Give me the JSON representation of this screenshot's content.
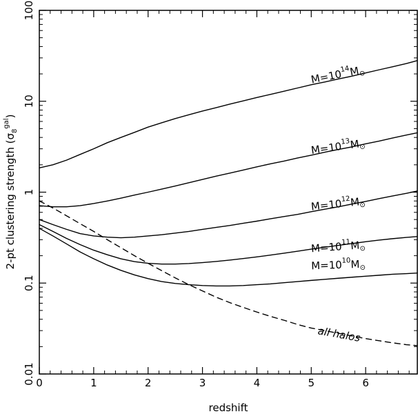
{
  "chart_data": {
    "type": "line",
    "title": "",
    "xlabel": "redshift",
    "ylabel": "2-pt clustering strength (σ8gal)",
    "ylabel_parts": {
      "main": "2-pt clustering strength (σ",
      "sub": "8",
      "sup": "gal",
      "close": ")"
    },
    "xlim": [
      0,
      6.95
    ],
    "ylim": [
      0.01,
      100
    ],
    "yscale": "log",
    "grid": false,
    "x_ticks": [
      0,
      1,
      2,
      3,
      4,
      5,
      6
    ],
    "x_tick_labels": [
      "0",
      "1",
      "2",
      "3",
      "4",
      "5",
      "6"
    ],
    "y_ticks": [
      0.01,
      0.1,
      1,
      10,
      100
    ],
    "y_tick_labels": [
      "0.01",
      "0.1",
      "1",
      "10",
      "100"
    ],
    "series": [
      {
        "label_parts": {
          "pre": "M=10",
          "exp": "14",
          "post": "M",
          "unit": "⊙"
        },
        "style": "solid",
        "label_at": [
          5.5,
          18
        ],
        "label_angle": -11,
        "x": [
          0,
          0.25,
          0.5,
          0.75,
          1,
          1.25,
          1.5,
          1.75,
          2,
          2.25,
          2.5,
          2.75,
          3,
          3.25,
          3.5,
          3.75,
          4,
          4.25,
          4.5,
          4.75,
          5,
          5.25,
          5.5,
          5.75,
          6,
          6.25,
          6.5,
          6.75,
          6.95
        ],
        "y": [
          1.85,
          2.0,
          2.25,
          2.6,
          3.0,
          3.5,
          4.0,
          4.55,
          5.2,
          5.8,
          6.45,
          7.1,
          7.8,
          8.5,
          9.3,
          10.1,
          11.0,
          11.9,
          12.9,
          14.0,
          15.2,
          16.3,
          17.6,
          18.9,
          20.5,
          22.2,
          24.0,
          26.0,
          28.0
        ]
      },
      {
        "label_parts": {
          "pre": "M=10",
          "exp": "13",
          "post": "M",
          "unit": "⊙"
        },
        "style": "solid",
        "label_at": [
          5.5,
          2.9
        ],
        "label_angle": -8,
        "x": [
          0,
          0.25,
          0.5,
          0.75,
          1,
          1.25,
          1.5,
          1.75,
          2,
          2.25,
          2.5,
          2.75,
          3,
          3.25,
          3.5,
          3.75,
          4,
          4.25,
          4.5,
          4.75,
          5,
          5.25,
          5.5,
          5.75,
          6,
          6.25,
          6.5,
          6.75,
          6.95
        ],
        "y": [
          0.71,
          0.69,
          0.69,
          0.71,
          0.75,
          0.8,
          0.86,
          0.93,
          1.0,
          1.08,
          1.17,
          1.27,
          1.38,
          1.5,
          1.62,
          1.75,
          1.9,
          2.05,
          2.2,
          2.38,
          2.55,
          2.75,
          2.95,
          3.15,
          3.4,
          3.65,
          3.95,
          4.25,
          4.5
        ]
      },
      {
        "label_parts": {
          "pre": "M=10",
          "exp": "12",
          "post": "M",
          "unit": "⊙"
        },
        "style": "solid",
        "label_at": [
          5.5,
          0.68
        ],
        "label_angle": -6,
        "x": [
          0,
          0.25,
          0.5,
          0.75,
          1,
          1.25,
          1.5,
          1.75,
          2,
          2.25,
          2.5,
          2.75,
          3,
          3.25,
          3.5,
          3.75,
          4,
          4.25,
          4.5,
          4.75,
          5,
          5.25,
          5.5,
          5.75,
          6,
          6.25,
          6.5,
          6.75,
          6.95
        ],
        "y": [
          0.5,
          0.44,
          0.39,
          0.35,
          0.33,
          0.32,
          0.315,
          0.32,
          0.33,
          0.34,
          0.355,
          0.37,
          0.39,
          0.41,
          0.43,
          0.455,
          0.48,
          0.51,
          0.54,
          0.57,
          0.61,
          0.65,
          0.69,
          0.74,
          0.79,
          0.85,
          0.91,
          0.97,
          1.03
        ]
      },
      {
        "label_parts": {
          "pre": "M=10",
          "exp": "11",
          "post": "M",
          "unit": "⊙"
        },
        "style": "solid",
        "label_at": [
          5.5,
          0.23
        ],
        "label_angle": -4,
        "x": [
          0,
          0.25,
          0.5,
          0.75,
          1,
          1.25,
          1.5,
          1.75,
          2,
          2.25,
          2.5,
          2.75,
          3,
          3.25,
          3.5,
          3.75,
          4,
          4.25,
          4.5,
          4.75,
          5,
          5.25,
          5.5,
          5.75,
          6,
          6.25,
          6.5,
          6.75,
          6.95
        ],
        "y": [
          0.44,
          0.37,
          0.31,
          0.265,
          0.23,
          0.205,
          0.185,
          0.172,
          0.165,
          0.162,
          0.162,
          0.164,
          0.168,
          0.173,
          0.179,
          0.186,
          0.194,
          0.203,
          0.213,
          0.224,
          0.236,
          0.248,
          0.26,
          0.272,
          0.285,
          0.297,
          0.308,
          0.318,
          0.325
        ]
      },
      {
        "label_parts": {
          "pre": "M=10",
          "exp": "10",
          "post": "M",
          "unit": "⊙"
        },
        "style": "solid",
        "label_at": [
          5.5,
          0.145
        ],
        "label_angle": -2,
        "x": [
          0,
          0.25,
          0.5,
          0.75,
          1,
          1.25,
          1.5,
          1.75,
          2,
          2.25,
          2.5,
          2.75,
          3,
          3.25,
          3.5,
          3.75,
          4,
          4.25,
          4.5,
          4.75,
          5,
          5.25,
          5.5,
          5.75,
          6,
          6.25,
          6.5,
          6.75,
          6.95
        ],
        "y": [
          0.4,
          0.33,
          0.27,
          0.22,
          0.185,
          0.158,
          0.138,
          0.123,
          0.112,
          0.104,
          0.099,
          0.096,
          0.094,
          0.093,
          0.093,
          0.094,
          0.096,
          0.098,
          0.101,
          0.104,
          0.107,
          0.11,
          0.113,
          0.116,
          0.119,
          0.122,
          0.125,
          0.127,
          0.129
        ]
      },
      {
        "label_parts": {
          "pre": "all halos",
          "exp": "",
          "post": "",
          "unit": ""
        },
        "style": "dashed",
        "label_at": [
          5.5,
          0.025
        ],
        "label_angle": 10,
        "x": [
          0,
          0.25,
          0.5,
          0.75,
          1,
          1.25,
          1.5,
          1.75,
          2,
          2.25,
          2.5,
          2.75,
          3,
          3.25,
          3.5,
          3.75,
          4,
          4.25,
          4.5,
          4.75,
          5,
          5.25,
          5.5,
          5.75,
          6,
          6.25,
          6.5,
          6.75,
          6.95
        ],
        "y": [
          0.8,
          0.67,
          0.55,
          0.45,
          0.37,
          0.3,
          0.245,
          0.2,
          0.165,
          0.137,
          0.114,
          0.096,
          0.082,
          0.07,
          0.061,
          0.054,
          0.048,
          0.043,
          0.039,
          0.035,
          0.032,
          0.03,
          0.028,
          0.0262,
          0.0245,
          0.0232,
          0.022,
          0.021,
          0.0205
        ]
      }
    ]
  }
}
